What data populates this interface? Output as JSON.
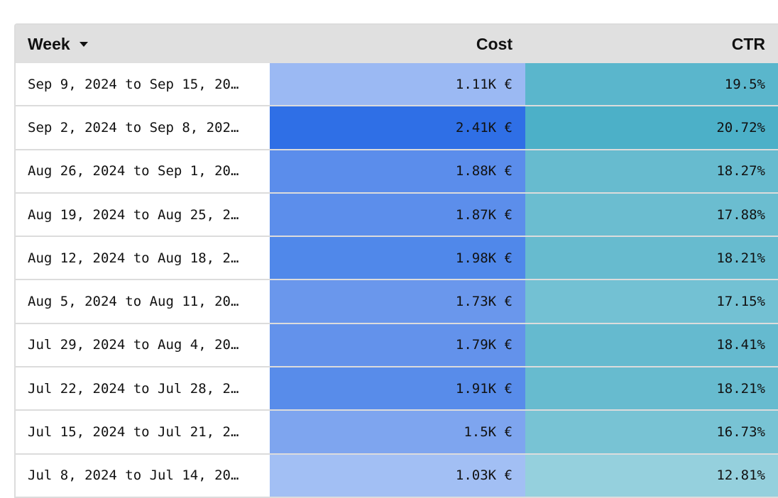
{
  "table": {
    "columns": [
      "Week",
      "Cost",
      "CTR"
    ],
    "rows": [
      [
        "Sep 9, 2024 to Sep 15, 20…",
        "1.11K €",
        "19.5%"
      ],
      [
        "Sep 2, 2024 to Sep 8, 202…",
        "2.41K €",
        "20.72%"
      ],
      [
        "Aug 26, 2024 to Sep 1, 20…",
        "1.88K €",
        "18.27%"
      ],
      [
        "Aug 19, 2024 to Aug 25, 2…",
        "1.87K €",
        "17.88%"
      ],
      [
        "Aug 12, 2024 to Aug 18, 2…",
        "1.98K €",
        "18.21%"
      ],
      [
        "Aug 5, 2024 to Aug 11, 20…",
        "1.73K €",
        "17.15%"
      ],
      [
        "Jul 29, 2024 to Aug 4, 20…",
        "1.79K €",
        "18.41%"
      ],
      [
        "Jul 22, 2024 to Jul 28, 2…",
        "1.91K €",
        "18.21%"
      ],
      [
        "Jul 15, 2024 to Jul 21, 2…",
        "1.5K €",
        "16.73%"
      ],
      [
        "Jul 8, 2024 to Jul 14, 20…",
        "1.03K €",
        "12.81%"
      ]
    ],
    "cost_colors": [
      "#9bb9f3",
      "#2f6fe6",
      "#5b8deb",
      "#5c8eeb",
      "#5088ea",
      "#6a97ec",
      "#6392eb",
      "#588cea",
      "#7ea5ef",
      "#a2bff4"
    ],
    "ctr_colors": [
      "#5ab6cc",
      "#4cb0c8",
      "#67bbcf",
      "#6bbdd0",
      "#67bbcf",
      "#73c1d3",
      "#65bacf",
      "#67bbcf",
      "#78c3d4",
      "#95d0dd"
    ]
  }
}
